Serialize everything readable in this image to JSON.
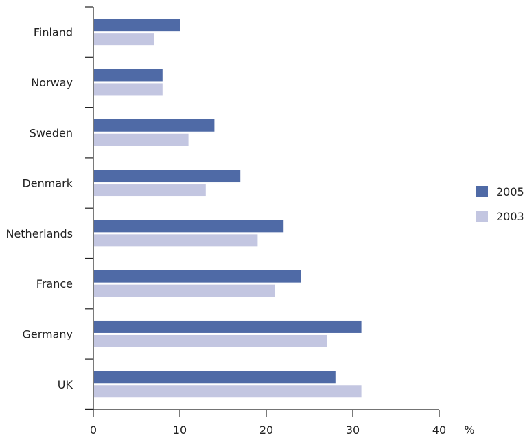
{
  "chart_data": {
    "type": "bar",
    "orientation": "horizontal",
    "categories": [
      "Finland",
      "Norway",
      "Sweden",
      "Denmark",
      "Netherlands",
      "France",
      "Germany",
      "UK"
    ],
    "series": [
      {
        "name": "2005",
        "color": "#4f6aa6",
        "values": [
          10,
          8,
          14,
          17,
          22,
          24,
          31,
          28
        ]
      },
      {
        "name": "2003",
        "color": "#c3c6e1",
        "values": [
          7,
          8,
          11,
          13,
          19,
          21,
          27,
          31
        ]
      }
    ],
    "x_ticks": [
      0,
      10,
      20,
      30,
      40
    ],
    "x_unit": "%",
    "xlim": [
      0,
      40
    ],
    "legend_position": "right",
    "grid": false
  }
}
